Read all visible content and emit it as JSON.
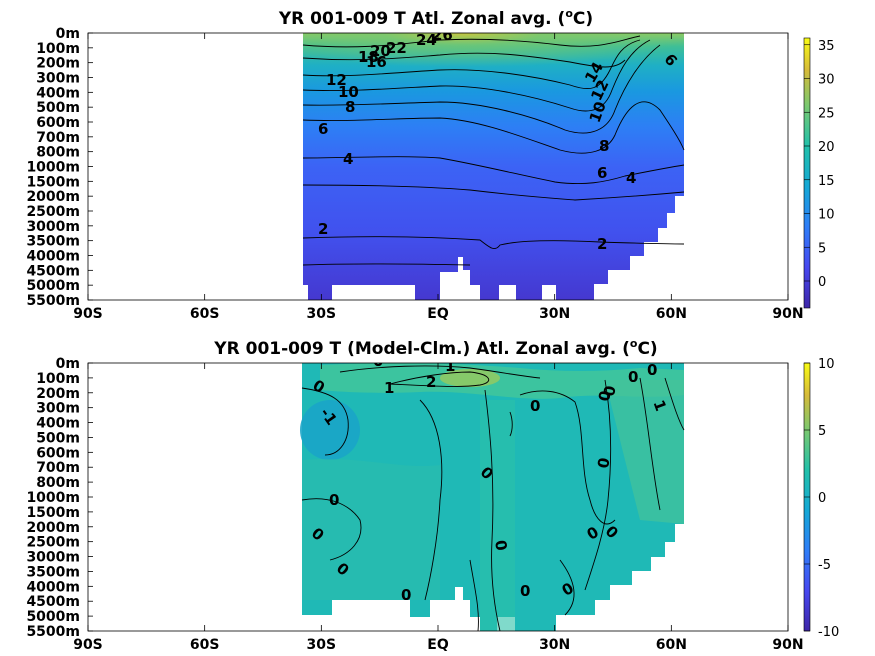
{
  "chart_data": [
    {
      "type": "heatmap",
      "title": "YR 001-009 T Atl. Zonal avg. (",
      "title_unit_sup": "o",
      "title_unit": "C)",
      "xlabel": "",
      "ylabel": "",
      "x_ticks": [
        "90S",
        "60S",
        "30S",
        "EQ",
        "30N",
        "60N",
        "90N"
      ],
      "y_ticks": [
        "0m",
        "100m",
        "200m",
        "300m",
        "400m",
        "500m",
        "600m",
        "700m",
        "800m",
        "1000m",
        "1500m",
        "2000m",
        "2500m",
        "3000m",
        "3500m",
        "4000m",
        "4500m",
        "5000m",
        "5500m"
      ],
      "colorbar": {
        "min": -4,
        "max": 36,
        "ticks": [
          "35",
          "30",
          "25",
          "20",
          "15",
          "10",
          "5",
          "0"
        ]
      },
      "contour_labels": [
        "12",
        "10",
        "8",
        "6",
        "4",
        "2",
        "16",
        "18",
        "20",
        "22",
        "24",
        "26",
        "14",
        "12",
        "10",
        "8",
        "6",
        "4",
        "2",
        "6"
      ],
      "grid": false
    },
    {
      "type": "heatmap",
      "title": "YR 001-009 T (Model-Clm.) Atl. Zonal avg. (",
      "title_unit_sup": "o",
      "title_unit": "C)",
      "xlabel": "",
      "ylabel": "",
      "x_ticks": [
        "90S",
        "60S",
        "30S",
        "EQ",
        "30N",
        "60N",
        "90N"
      ],
      "y_ticks": [
        "0m",
        "100m",
        "200m",
        "300m",
        "400m",
        "500m",
        "600m",
        "700m",
        "800m",
        "1000m",
        "1500m",
        "2000m",
        "2500m",
        "3000m",
        "3500m",
        "4000m",
        "4500m",
        "5000m",
        "5500m"
      ],
      "colorbar": {
        "min": -10,
        "max": 10,
        "ticks": [
          "10",
          "5",
          "0",
          "-5",
          "-10"
        ]
      },
      "contour_labels": [
        "0",
        "1",
        "1",
        "2",
        "0",
        "-1",
        "0",
        "0",
        "0",
        "0",
        "0",
        "1",
        "0",
        "0",
        "0",
        "0",
        "0",
        "0",
        "0",
        "0",
        "0"
      ],
      "grid": false
    }
  ]
}
